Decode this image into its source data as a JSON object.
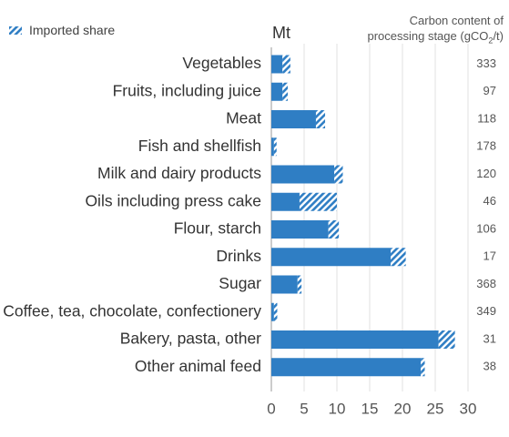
{
  "legend": {
    "label": "Imported share",
    "color": "#2f7ec4"
  },
  "unit": "Mt",
  "carbon_header": {
    "line1": "Carbon content of",
    "line2_prefix": "processing stage (gCO",
    "line2_sub": "2",
    "line2_suffix": "/t)"
  },
  "chart_data": {
    "type": "bar",
    "orientation": "horizontal",
    "stacked": true,
    "categories": [
      "Vegetables",
      "Fruits, including juice",
      "Meat",
      "Fish and shellfish",
      "Milk and dairy products",
      "Oils including press cake",
      "Flour, starch",
      "Drinks",
      "Sugar",
      "Coffee, tea, chocolate, confectionery",
      "Bakery, pasta, other",
      "Other animal feed"
    ],
    "series": [
      {
        "values": [
          1.7,
          1.7,
          6.8,
          0.4,
          9.6,
          4.3,
          8.7,
          18.2,
          4.0,
          0.4,
          25.5,
          22.8
        ]
      },
      {
        "name": "Imported share",
        "values": [
          1.2,
          0.8,
          1.4,
          0.4,
          1.3,
          5.7,
          1.6,
          2.3,
          0.6,
          0.5,
          2.5,
          0.6
        ]
      }
    ],
    "carbon_content": [
      "333",
      "97",
      "118",
      "178",
      "120",
      "46",
      "106",
      "17",
      "368",
      "349",
      "31",
      "38"
    ],
    "xticks": [
      0,
      5,
      10,
      15,
      20,
      25,
      30
    ],
    "xlim": [
      0,
      30
    ],
    "grid": true,
    "colors": {
      "bar": "#2f7ec4",
      "grid": "#e2e2e2"
    }
  }
}
